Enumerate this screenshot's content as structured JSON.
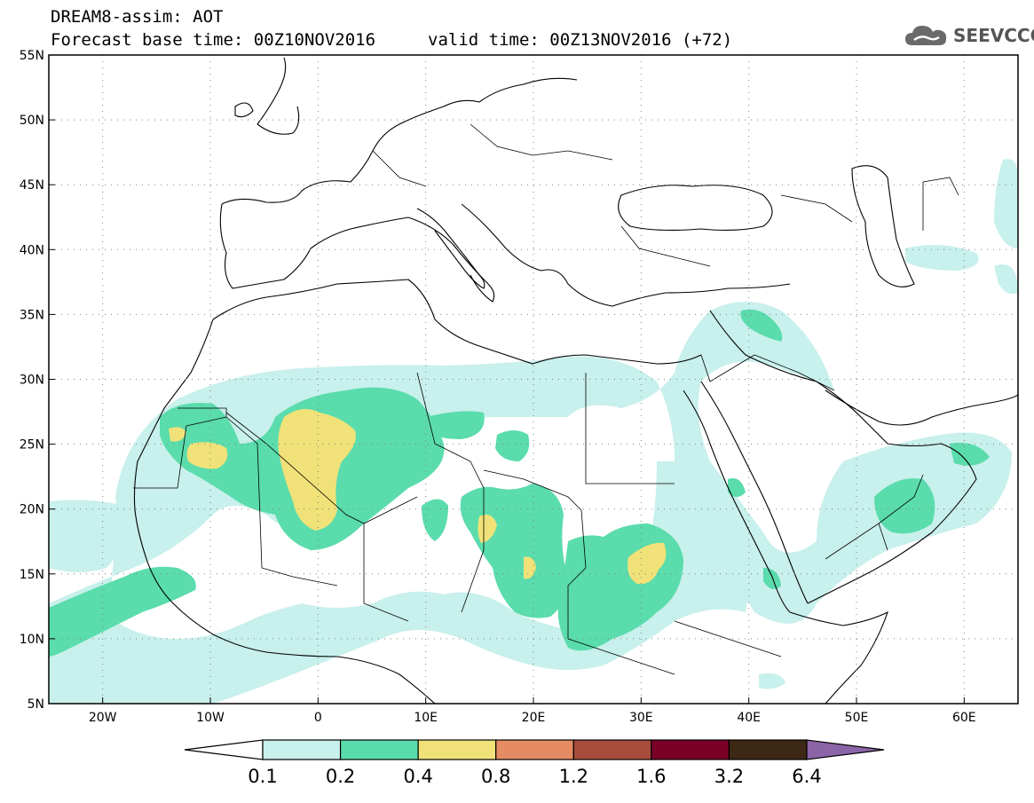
{
  "header": {
    "title": "DREAM8-assim: AOT",
    "base_time": "Forecast base time: 00Z10NOV2016",
    "valid_time": "valid time: 00Z13NOV2016 (+72)"
  },
  "logo": {
    "text": "SEEVCCC",
    "icon": "cloud-icon"
  },
  "map": {
    "lon_range": [
      -25,
      65
    ],
    "lat_range": [
      5,
      55
    ],
    "lat_ticks": [
      {
        "v": 55,
        "label": "55N"
      },
      {
        "v": 50,
        "label": "50N"
      },
      {
        "v": 45,
        "label": "45N"
      },
      {
        "v": 40,
        "label": "40N"
      },
      {
        "v": 35,
        "label": "35N"
      },
      {
        "v": 30,
        "label": "30N"
      },
      {
        "v": 25,
        "label": "25N"
      },
      {
        "v": 20,
        "label": "20N"
      },
      {
        "v": 15,
        "label": "15N"
      },
      {
        "v": 10,
        "label": "10N"
      },
      {
        "v": 5,
        "label": "5N"
      }
    ],
    "lon_ticks": [
      {
        "v": -20,
        "label": "20W"
      },
      {
        "v": -10,
        "label": "10W"
      },
      {
        "v": 0,
        "label": "0"
      },
      {
        "v": 10,
        "label": "10E"
      },
      {
        "v": 20,
        "label": "20E"
      },
      {
        "v": 30,
        "label": "30E"
      },
      {
        "v": 40,
        "label": "40E"
      },
      {
        "v": 50,
        "label": "50E"
      },
      {
        "v": 60,
        "label": "60E"
      }
    ],
    "grid": "dotted",
    "colors": {
      "c1": "#c8f0ec",
      "c2": "#5adcac",
      "c3": "#f0e278",
      "coast": "#000000",
      "frame": "#000000"
    }
  },
  "colorbar": {
    "ticks": [
      "0.1",
      "0.2",
      "0.4",
      "0.8",
      "1.2",
      "1.6",
      "3.2",
      "6.4"
    ],
    "colors": [
      "#ffffff",
      "#c8f0ec",
      "#5adcac",
      "#f0e278",
      "#e68c64",
      "#a84c3c",
      "#7a0028",
      "#3c2814",
      "#8c64a8"
    ]
  }
}
